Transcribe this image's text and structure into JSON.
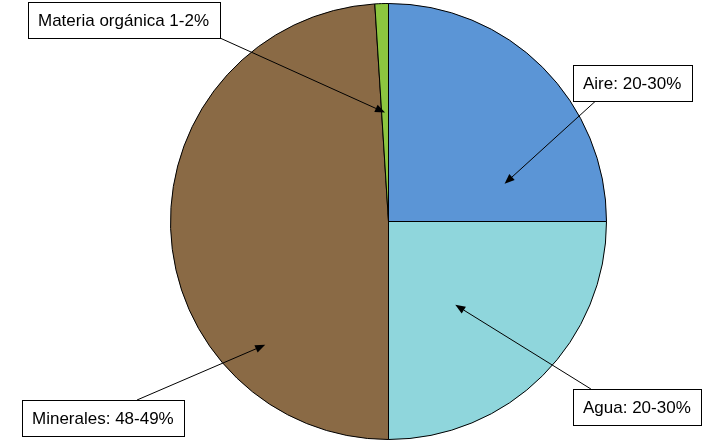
{
  "chart_data": {
    "type": "pie",
    "categories": [
      "Aire: 20-30%",
      "Agua: 20-30%",
      "Minerales: 48-49%",
      "Materia orgánica 1-2%"
    ],
    "values": [
      25,
      25,
      49,
      1
    ],
    "colors": [
      "#5b95d6",
      "#8fd6dc",
      "#8a6a45",
      "#8cc63f"
    ]
  }
}
